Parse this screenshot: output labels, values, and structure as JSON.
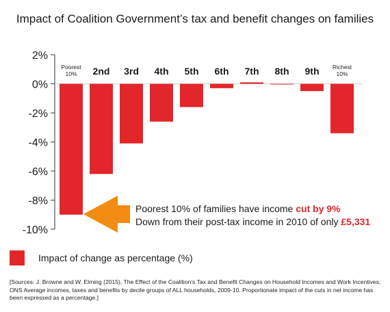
{
  "chart_data": {
    "type": "bar",
    "title": "Impact of Coalition Government’s tax and benefit changes on families",
    "categories": [
      [
        "Poorest",
        "10%"
      ],
      [
        "2nd"
      ],
      [
        "3rd"
      ],
      [
        "4th"
      ],
      [
        "5th"
      ],
      [
        "6th"
      ],
      [
        "7th"
      ],
      [
        "8th"
      ],
      [
        "9th"
      ],
      [
        "Richest",
        "10%"
      ]
    ],
    "series": [
      {
        "name": "Impact of change as percentage (%)",
        "values": [
          -9.0,
          -6.2,
          -4.1,
          -2.6,
          -1.6,
          -0.3,
          0.1,
          0.0,
          -0.5,
          -3.4
        ]
      }
    ],
    "ylim": [
      -10,
      2
    ],
    "yticks": [
      2,
      0,
      -2,
      -4,
      -6,
      -8,
      -10
    ],
    "ytick_labels": [
      "2%",
      "0%",
      "-2%",
      "-4%",
      "-6%",
      "-8%",
      "-10%"
    ],
    "grid": false,
    "legend_position": "bottom-left",
    "bar_color": "#e3262b",
    "arrow_color": "#f28c12",
    "annotation": {
      "line1_prefix": "Poorest 10% of families have income ",
      "line1_highlight": "cut by 9%",
      "line2_prefix": "Down from their post-tax income in 2010 of only ",
      "line2_highlight": "£5,331"
    }
  },
  "sources": "[Sources: J. Browne and W. Elming (2015), The Effect of the Coalition’s Tax and Benefit Changes on Household Incomes and Work Incentives; ONS Average incomes, taxes and benefits by decile groups of ALL households, 2009-10. Proportionate impact of the cuts in net income has been expressed as a percentage.]"
}
